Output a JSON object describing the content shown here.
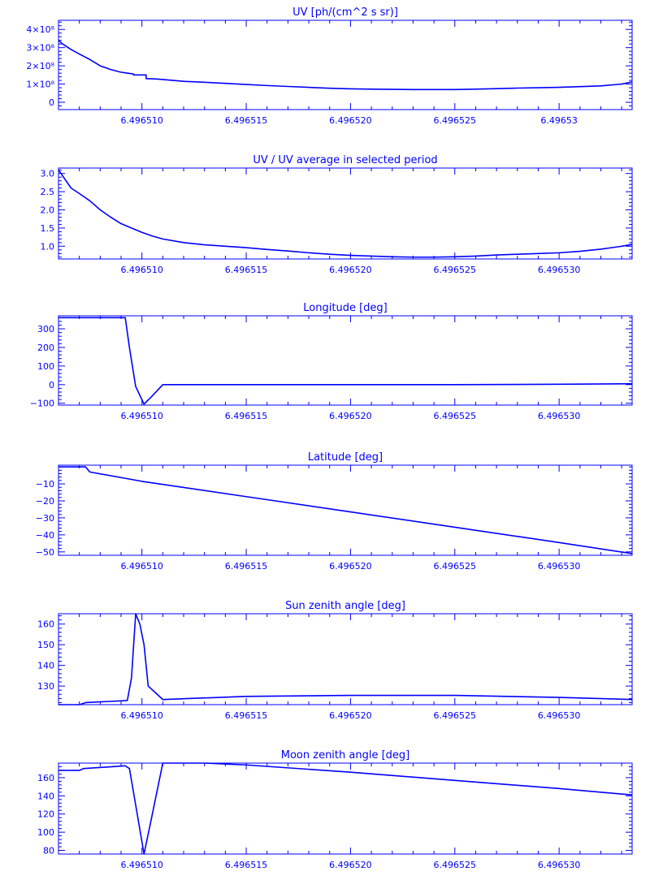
{
  "colors": {
    "axis": "#0000ff",
    "line": "#0000ff",
    "background": "#ffffff"
  },
  "chart_data": [
    {
      "type": "line",
      "title": "UV [ph/(cm^2 s sr)]",
      "xlabel": "",
      "ylabel": "",
      "xlim": [
        6.496506,
        6.4965335
      ],
      "ylim": [
        -40000000,
        450000000
      ],
      "xticks": [
        6.49651,
        6.496515,
        6.49652,
        6.496525,
        6.49653
      ],
      "xticklabels": [
        "6.496510",
        "6.496515",
        "6.496520",
        "6.496525",
        "6.49653"
      ],
      "yticks": [
        0,
        100000000,
        200000000,
        300000000,
        400000000
      ],
      "yticklabels": [
        "0",
        "1×10⁸",
        "2×10⁸",
        "3×10⁸",
        "4×10⁸"
      ],
      "grid": false,
      "series": [
        {
          "x": [
            6.496506,
            6.4965062,
            6.4965066,
            6.496507,
            6.4965075,
            6.496508,
            6.4965085,
            6.496509,
            6.4965093,
            6.4965096,
            6.4965096,
            6.4965099,
            6.4965102,
            6.4965102,
            6.4965107,
            6.496511,
            6.4965115,
            6.496512,
            6.496513,
            6.496514,
            6.496515,
            6.496516,
            6.496517,
            6.496518,
            6.496519,
            6.49652,
            6.496521,
            6.496522,
            6.496523,
            6.496524,
            6.496525,
            6.496526,
            6.496527,
            6.496528,
            6.496529,
            6.49653,
            6.496531,
            6.496532,
            6.496533,
            6.4965335
          ],
          "y": [
            340000000,
            320000000,
            290000000,
            265000000,
            235000000,
            200000000,
            180000000,
            165000000,
            160000000,
            155000000,
            150000000,
            150000000,
            150000000,
            130000000,
            128000000,
            125000000,
            120000000,
            115000000,
            110000000,
            104000000,
            98000000,
            92000000,
            87000000,
            82000000,
            77000000,
            74000000,
            72000000,
            71000000,
            70000000,
            70000000,
            70000000,
            72000000,
            75000000,
            78000000,
            80000000,
            82000000,
            86000000,
            90000000,
            100000000,
            112000000
          ]
        }
      ]
    },
    {
      "type": "line",
      "title": "UV / UV average in selected period",
      "xlabel": "",
      "ylabel": "",
      "xlim": [
        6.496506,
        6.4965335
      ],
      "ylim": [
        0.65,
        3.15
      ],
      "xticks": [
        6.49651,
        6.496515,
        6.49652,
        6.496525,
        6.49653
      ],
      "xticklabels": [
        "6.496510",
        "6.496515",
        "6.496520",
        "6.496525",
        "6.496530"
      ],
      "yticks": [
        1.0,
        1.5,
        2.0,
        2.5,
        3.0
      ],
      "yticklabels": [
        "1.0",
        "1.5",
        "2.0",
        "2.5",
        "3.0"
      ],
      "grid": false,
      "series": [
        {
          "x": [
            6.496506,
            6.4965063,
            6.4965066,
            6.496507,
            6.4965075,
            6.496508,
            6.4965085,
            6.496509,
            6.4965095,
            6.49651,
            6.4965105,
            6.496511,
            6.496512,
            6.496513,
            6.496514,
            6.496515,
            6.496516,
            6.496517,
            6.496518,
            6.496519,
            6.49652,
            6.496521,
            6.496522,
            6.496523,
            6.496524,
            6.496525,
            6.496526,
            6.496527,
            6.496528,
            6.496529,
            6.49653,
            6.496531,
            6.496532,
            6.496533,
            6.4965335
          ],
          "y": [
            3.1,
            2.85,
            2.6,
            2.45,
            2.25,
            2.0,
            1.8,
            1.62,
            1.5,
            1.38,
            1.28,
            1.2,
            1.1,
            1.04,
            1.0,
            0.96,
            0.91,
            0.87,
            0.82,
            0.78,
            0.75,
            0.73,
            0.71,
            0.7,
            0.7,
            0.71,
            0.73,
            0.76,
            0.78,
            0.8,
            0.82,
            0.86,
            0.92,
            1.0,
            1.05
          ]
        }
      ]
    },
    {
      "type": "line",
      "title": "Longitude [deg]",
      "xlabel": "",
      "ylabel": "",
      "xlim": [
        6.496506,
        6.4965335
      ],
      "ylim": [
        -110,
        370
      ],
      "xticks": [
        6.49651,
        6.496515,
        6.49652,
        6.496525,
        6.49653
      ],
      "xticklabels": [
        "6.496510",
        "6.496515",
        "6.496520",
        "6.496525",
        "6.496530"
      ],
      "yticks": [
        -100,
        0,
        100,
        200,
        300
      ],
      "yticklabels": [
        "−100",
        "0",
        "100",
        "200",
        "300"
      ],
      "grid": false,
      "series": [
        {
          "x": [
            6.496506,
            6.4965092,
            6.4965094,
            6.4965097,
            6.4965101,
            6.4965105,
            6.496511,
            6.496515,
            6.49652,
            6.496525,
            6.49653,
            6.4965335
          ],
          "y": [
            360,
            360,
            200,
            -10,
            -105,
            -60,
            0,
            0,
            0,
            0,
            2,
            5
          ]
        }
      ]
    },
    {
      "type": "line",
      "title": "Latitude [deg]",
      "xlabel": "",
      "ylabel": "",
      "xlim": [
        6.496506,
        6.4965335
      ],
      "ylim": [
        -52,
        1
      ],
      "xticks": [
        6.49651,
        6.496515,
        6.49652,
        6.496525,
        6.49653
      ],
      "xticklabels": [
        "6.496510",
        "6.496515",
        "6.496520",
        "6.496525",
        "6.496530"
      ],
      "yticks": [
        -50,
        -40,
        -30,
        -20,
        -10
      ],
      "yticklabels": [
        "−50",
        "−40",
        "−30",
        "−20",
        "−10"
      ],
      "grid": false,
      "series": [
        {
          "x": [
            6.496506,
            6.4965073,
            6.4965075,
            6.49651,
            6.496515,
            6.49652,
            6.496525,
            6.49653,
            6.4965335
          ],
          "y": [
            0,
            0,
            -3,
            -8.5,
            -17.5,
            -26.5,
            -35.5,
            -44.5,
            -51
          ]
        }
      ]
    },
    {
      "type": "line",
      "title": "Sun zenith angle [deg]",
      "xlabel": "",
      "ylabel": "",
      "xlim": [
        6.496506,
        6.4965335
      ],
      "ylim": [
        121,
        165
      ],
      "xticks": [
        6.49651,
        6.496515,
        6.49652,
        6.496525,
        6.49653
      ],
      "xticklabels": [
        "6.496510",
        "6.496515",
        "6.496520",
        "6.496525",
        "6.496530"
      ],
      "yticks": [
        130,
        140,
        150,
        160
      ],
      "yticklabels": [
        "130",
        "140",
        "150",
        "160"
      ],
      "grid": false,
      "series": [
        {
          "x": [
            6.496506,
            6.496507,
            6.4965073,
            6.4965093,
            6.4965095,
            6.4965097,
            6.4965099,
            6.4965101,
            6.4965102,
            6.4965103,
            6.496511,
            6.496515,
            6.49652,
            6.496525,
            6.49653,
            6.4965335
          ],
          "y": [
            121,
            121,
            122,
            123,
            134,
            165,
            160,
            150,
            140,
            130,
            123.5,
            125,
            125.5,
            125.5,
            124.5,
            123.5
          ]
        }
      ]
    },
    {
      "type": "line",
      "title": "Moon zenith angle [deg]",
      "xlabel": "",
      "ylabel": "",
      "xlim": [
        6.496506,
        6.4965335
      ],
      "ylim": [
        76,
        176
      ],
      "xticks": [
        6.49651,
        6.496515,
        6.49652,
        6.496525,
        6.49653
      ],
      "xticklabels": [
        "6.496510",
        "6.496515",
        "6.496520",
        "6.496525",
        "6.496530"
      ],
      "yticks": [
        80,
        100,
        120,
        140,
        160
      ],
      "yticklabels": [
        "80",
        "100",
        "120",
        "140",
        "160"
      ],
      "grid": false,
      "series": [
        {
          "x": [
            6.496506,
            6.496507,
            6.4965072,
            6.4965092,
            6.4965094,
            6.4965097,
            6.4965101,
            6.4965105,
            6.496511,
            6.496513,
            6.496515,
            6.49652,
            6.496525,
            6.49653,
            6.4965335
          ],
          "y": [
            168,
            168,
            170,
            173,
            170,
            130,
            76,
            120,
            176,
            176,
            174,
            166,
            157,
            148,
            141
          ]
        }
      ]
    }
  ]
}
